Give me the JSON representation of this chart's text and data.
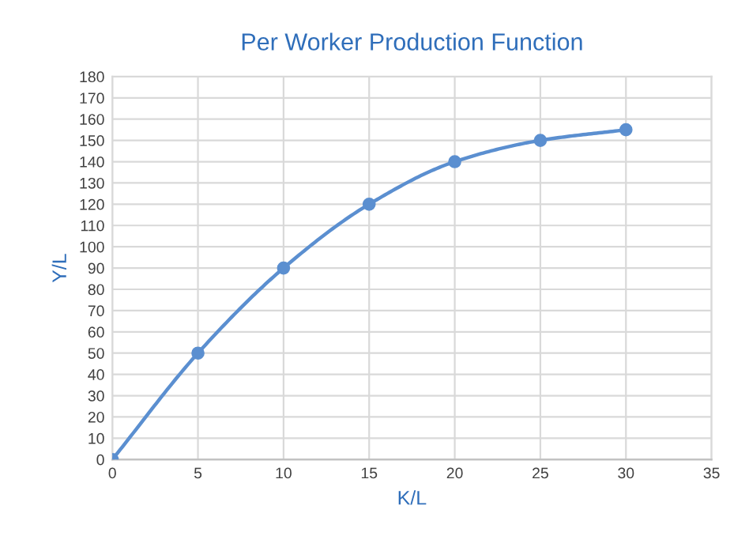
{
  "chart_data": {
    "type": "line",
    "title": "Per Worker Production Function",
    "xlabel": "K/L",
    "ylabel": "Y/L",
    "x": [
      0,
      5,
      10,
      15,
      20,
      25,
      30
    ],
    "series": [
      {
        "color": "#5b8fd0",
        "values": [
          0,
          50,
          90,
          120,
          140,
          150,
          155
        ]
      }
    ],
    "xlim": [
      0,
      35
    ],
    "xticks": [
      0,
      5,
      10,
      15,
      20,
      25,
      30,
      35
    ],
    "ylim": [
      0,
      180
    ],
    "yticks": [
      0,
      10,
      20,
      30,
      40,
      50,
      60,
      70,
      80,
      90,
      100,
      110,
      120,
      130,
      140,
      150,
      160,
      170,
      180
    ],
    "grid": true,
    "marker": "circle",
    "line_style": "solid"
  }
}
